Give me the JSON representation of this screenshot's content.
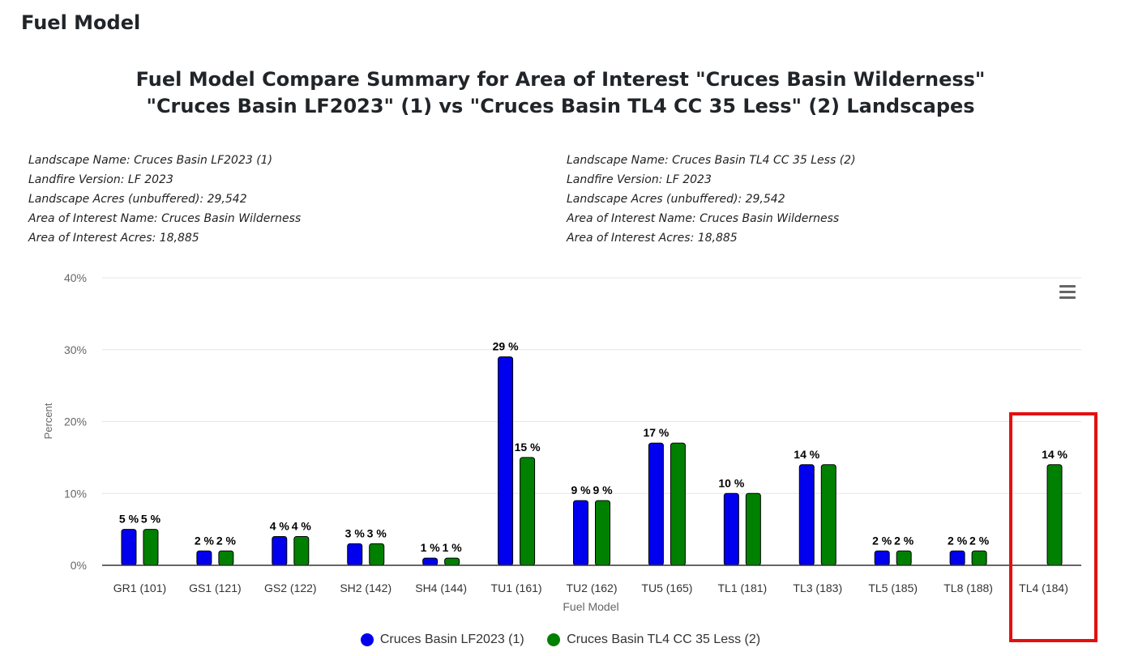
{
  "page": {
    "heading": "Fuel Model",
    "title_line1": "Fuel Model Compare Summary for Area of Interest \"Cruces Basin Wilderness\"",
    "title_line2": "\"Cruces Basin LF2023\" (1) vs \"Cruces Basin TL4 CC 35 Less\" (2) Landscapes"
  },
  "landscape1": {
    "lines": [
      "Landscape Name: Cruces Basin LF2023 (1)",
      "Landfire Version: LF 2023",
      "Landscape Acres (unbuffered): 29,542",
      "Area of Interest Name: Cruces Basin Wilderness",
      "Area of Interest Acres: 18,885"
    ]
  },
  "landscape2": {
    "lines": [
      "Landscape Name: Cruces Basin TL4 CC 35 Less (2)",
      "Landfire Version: LF 2023",
      "Landscape Acres (unbuffered): 29,542",
      "Area of Interest Name: Cruces Basin Wilderness",
      "Area of Interest Acres: 18,885"
    ]
  },
  "chart_data": {
    "type": "bar",
    "title": "",
    "xlabel": "Fuel Model",
    "ylabel": "Percent",
    "ylim": [
      0,
      40
    ],
    "yticks": [
      0,
      10,
      20,
      30,
      40
    ],
    "ytick_suffix": "%",
    "data_label_suffix": " %",
    "grid": true,
    "legend_position": "bottom-center",
    "categories": [
      "GR1 (101)",
      "GS1 (121)",
      "GS2 (122)",
      "SH2 (142)",
      "SH4 (144)",
      "TU1 (161)",
      "TU2 (162)",
      "TU5 (165)",
      "TL1 (181)",
      "TL3 (183)",
      "TL5 (185)",
      "TL8 (188)",
      "TL4 (184)"
    ],
    "series": [
      {
        "name": "Cruces Basin LF2023 (1)",
        "color": "#0000ee",
        "values": [
          5,
          2,
          4,
          3,
          1,
          29,
          9,
          17,
          10,
          14,
          2,
          2,
          null
        ],
        "labels_shown": [
          true,
          true,
          true,
          true,
          true,
          true,
          true,
          true,
          true,
          true,
          true,
          true,
          false
        ]
      },
      {
        "name": "Cruces Basin TL4 CC 35 Less (2)",
        "color": "#008000",
        "values": [
          5,
          2,
          4,
          3,
          1,
          15,
          9,
          17,
          10,
          14,
          2,
          2,
          14
        ],
        "labels_shown": [
          true,
          true,
          true,
          true,
          true,
          true,
          true,
          false,
          false,
          false,
          true,
          true,
          true
        ]
      }
    ],
    "highlight_category": "TL4 (184)",
    "highlight_color": "#e31010",
    "menu_icon": "hamburger-menu-icon"
  }
}
